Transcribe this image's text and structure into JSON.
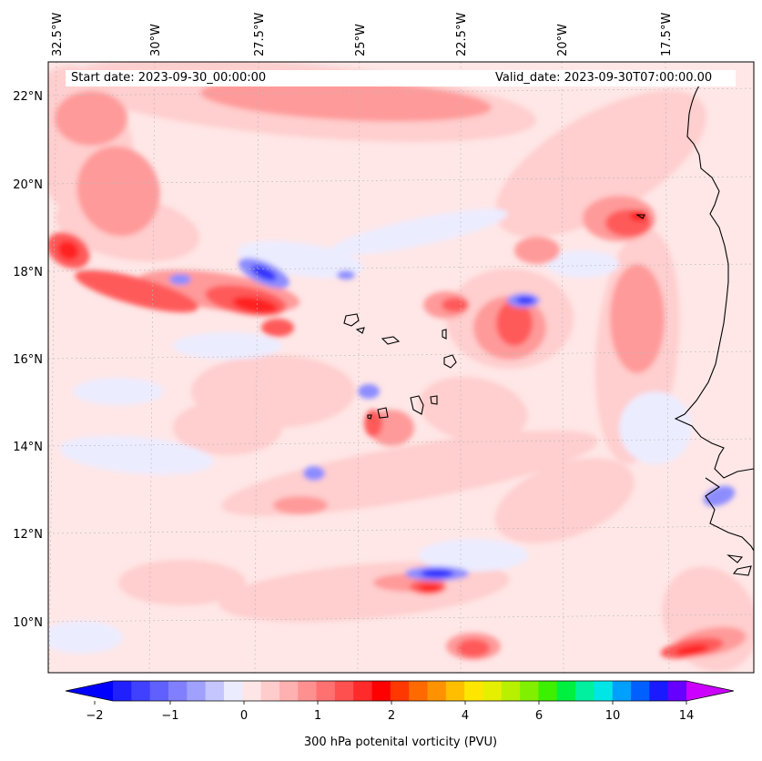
{
  "header": {
    "start_date": "Start date: 2023-09-30_00:00:00",
    "valid_date": "Valid_date: 2023-09-30T07:00:00.00"
  },
  "axes": {
    "lon_labels": [
      "32.5°W",
      "30°W",
      "27.5°W",
      "25°W",
      "22.5°W",
      "20°W",
      "17.5°W"
    ],
    "lat_labels": [
      "22°N",
      "20°N",
      "18°N",
      "16°N",
      "14°N",
      "12°N",
      "10°N"
    ],
    "gridlines": true
  },
  "colorbar": {
    "title": "300 hPa potenital vorticity (PVU)",
    "tick_labels": [
      "−2",
      "−1",
      "0",
      "1",
      "2",
      "4",
      "6",
      "10",
      "14"
    ],
    "extend": "both",
    "colors": [
      "#0000ff",
      "#2020ff",
      "#4040ff",
      "#6060ff",
      "#8080ff",
      "#a0a0ff",
      "#c6c6ff",
      "#ececff",
      "#ffe6e6",
      "#ffcccc",
      "#ffb0b0",
      "#ff9090",
      "#ff7070",
      "#ff5050",
      "#ff2a2a",
      "#ff0000",
      "#ff3800",
      "#ff6a00",
      "#ff9200",
      "#ffbe00",
      "#ffe600",
      "#e6ef00",
      "#b8f000",
      "#80f000",
      "#3cf000",
      "#00f040",
      "#00f0a0",
      "#00e6e6",
      "#00a0ff",
      "#0060ff",
      "#1a1aff",
      "#6600ff",
      "#cc00ff"
    ]
  },
  "field_colors": {
    "background": "#ffe7e7",
    "pale_blue": "#ececff",
    "light_pink": "#ffcece",
    "salmon": "#ff9a9a",
    "red": "#ff5a5a",
    "deep_red": "#ff2020",
    "blue": "#8c8cff",
    "deep_blue": "#3030ff",
    "coast": "#000000"
  }
}
